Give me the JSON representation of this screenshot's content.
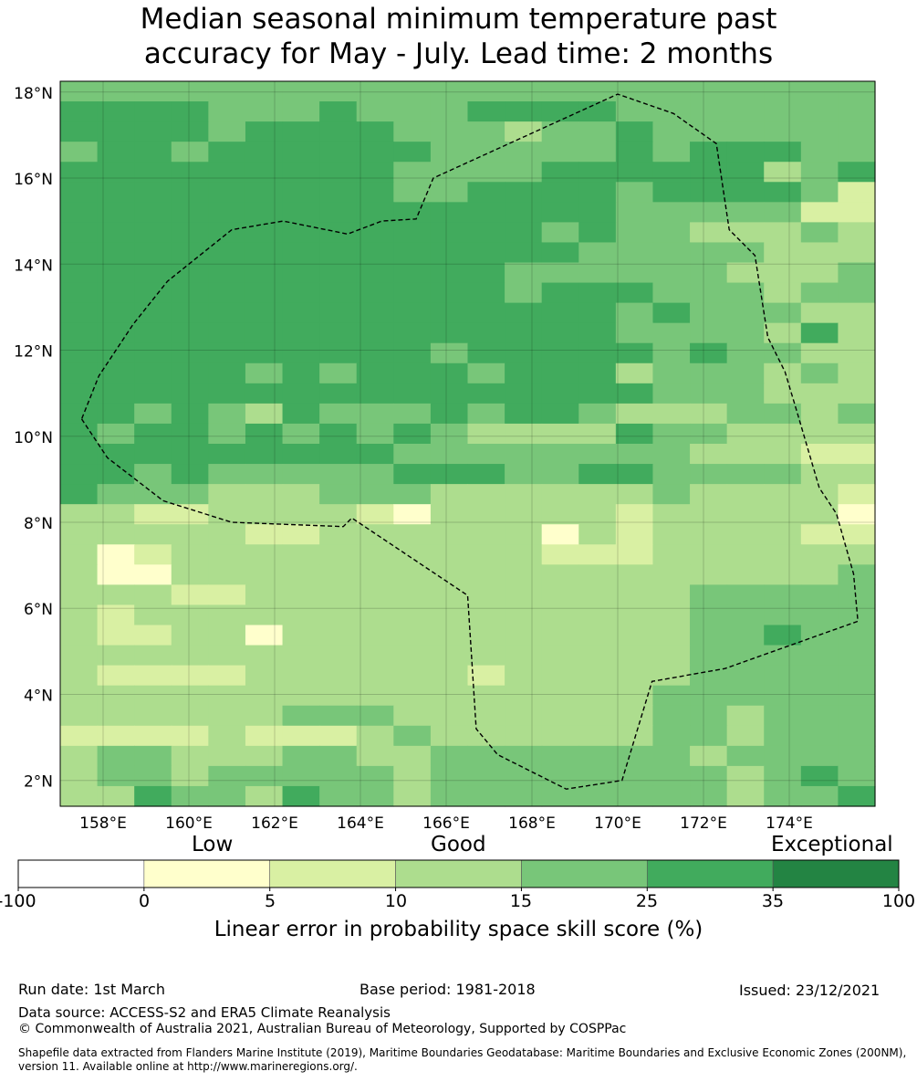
{
  "title": {
    "line1": "Median seasonal minimum temperature past",
    "line2": "accuracy for May - July. Lead time: 2 months"
  },
  "map": {
    "lat_labels": [
      "18°N",
      "16°N",
      "14°N",
      "12°N",
      "10°N",
      "8°N",
      "6°N",
      "4°N",
      "2°N"
    ],
    "lat_values": [
      18,
      16,
      14,
      12,
      10,
      8,
      6,
      4,
      2
    ],
    "lon_labels": [
      "158°E",
      "160°E",
      "162°E",
      "164°E",
      "166°E",
      "168°E",
      "170°E",
      "172°E",
      "174°E"
    ],
    "lon_values": [
      158,
      160,
      162,
      164,
      166,
      168,
      170,
      172,
      174
    ],
    "extent": {
      "lon_min": 157,
      "lon_max": 176,
      "lat_min": 1.4,
      "lat_max": 18.25
    },
    "eez_boundary": [
      [
        157.5,
        10.4
      ],
      [
        158.1,
        9.5
      ],
      [
        159.4,
        8.5
      ],
      [
        161,
        8
      ],
      [
        163.6,
        7.9
      ],
      [
        163.8,
        8.1
      ],
      [
        166.5,
        6.3
      ],
      [
        166.7,
        3.2
      ],
      [
        167.2,
        2.6
      ],
      [
        168.8,
        1.8
      ],
      [
        170.1,
        2.0
      ],
      [
        170.8,
        4.3
      ],
      [
        172.5,
        4.6
      ],
      [
        175.6,
        5.7
      ],
      [
        175.5,
        6.8
      ],
      [
        175.1,
        8.2
      ],
      [
        174.7,
        8.8
      ],
      [
        174.2,
        10.5
      ],
      [
        173.9,
        11.5
      ],
      [
        173.5,
        12.3
      ],
      [
        173.2,
        14.2
      ],
      [
        172.6,
        14.8
      ],
      [
        172.3,
        16.8
      ],
      [
        171.3,
        17.5
      ],
      [
        170,
        17.95
      ],
      [
        165.7,
        16.0
      ],
      [
        165.3,
        15.05
      ],
      [
        164.5,
        15.0
      ],
      [
        163.7,
        14.7
      ],
      [
        162.2,
        15.0
      ],
      [
        161.0,
        14.8
      ],
      [
        159.5,
        13.6
      ],
      [
        158.7,
        12.6
      ],
      [
        157.9,
        11.4
      ],
      [
        157.5,
        10.4
      ]
    ],
    "grid_rows": [
      "4444444444444444444444",
      "5555444544455554444444",
      "5555455554443445444444",
      "4554555555444445455544",
      "5555555554444555555345",
      "5555555554455554555542",
      "5555555555555554444422",
      "5555555555555454433343",
      "5555555555555544444333",
      "5555555555554444443334",
      "5555555555554555444344",
      "5555555555555554544433",
      "5555555555555554444353",
      "5555555555455555454433",
      "5555545455545553444343",
      "5555555555555555444333",
      "5545435444545543334434",
      "5455454545433335443333",
      "5555555554444444433322",
      "5545444445554455444433",
      "5444333444333333433332",
      "3322333321333332333331",
      "3333322333333132333322",
      "3123333333333222333333",
      "3113333333333333333334",
      "3332233333333333344444",
      "3233333333333333344444",
      "3223313333333333344544",
      "3333333333333333344444",
      "3222233333323333344444",
      "3333333333333333444444",
      "3333334443333333443444",
      "2222322234333333443444",
      "3443334433444444434444",
      "3443444443444444443454",
      "3354435443444444443445"
    ]
  },
  "colorbar": {
    "categories": [
      "Low",
      "Good",
      "Exceptional"
    ],
    "boundaries": [
      "-100",
      "0",
      "5",
      "10",
      "15",
      "25",
      "35",
      "100"
    ],
    "colors": [
      "#ffffff",
      "#ffffcc",
      "#d9f0a3",
      "#addd8e",
      "#78c679",
      "#41ab5d",
      "#238443"
    ],
    "title": "Linear error in probability space skill score (%)"
  },
  "footer": {
    "run_date": "Run date: 1st March",
    "base_period": "Base period: 1981-2018",
    "issued": "Issued: 23/12/2021",
    "data_source": "Data source: ACCESS-S2 and ERA5 Climate Reanalysis",
    "copyright": "© Commonwealth of Australia 2021, Australian Bureau of Meteorology, Supported by COSPPac",
    "shapefile": "Shapefile data extracted from Flanders Marine Institute (2019), Maritime Boundaries Geodatabase: Maritime Boundaries and Exclusive Economic Zones (200NM), version 11. Available online at http://www.marineregions.org/."
  }
}
